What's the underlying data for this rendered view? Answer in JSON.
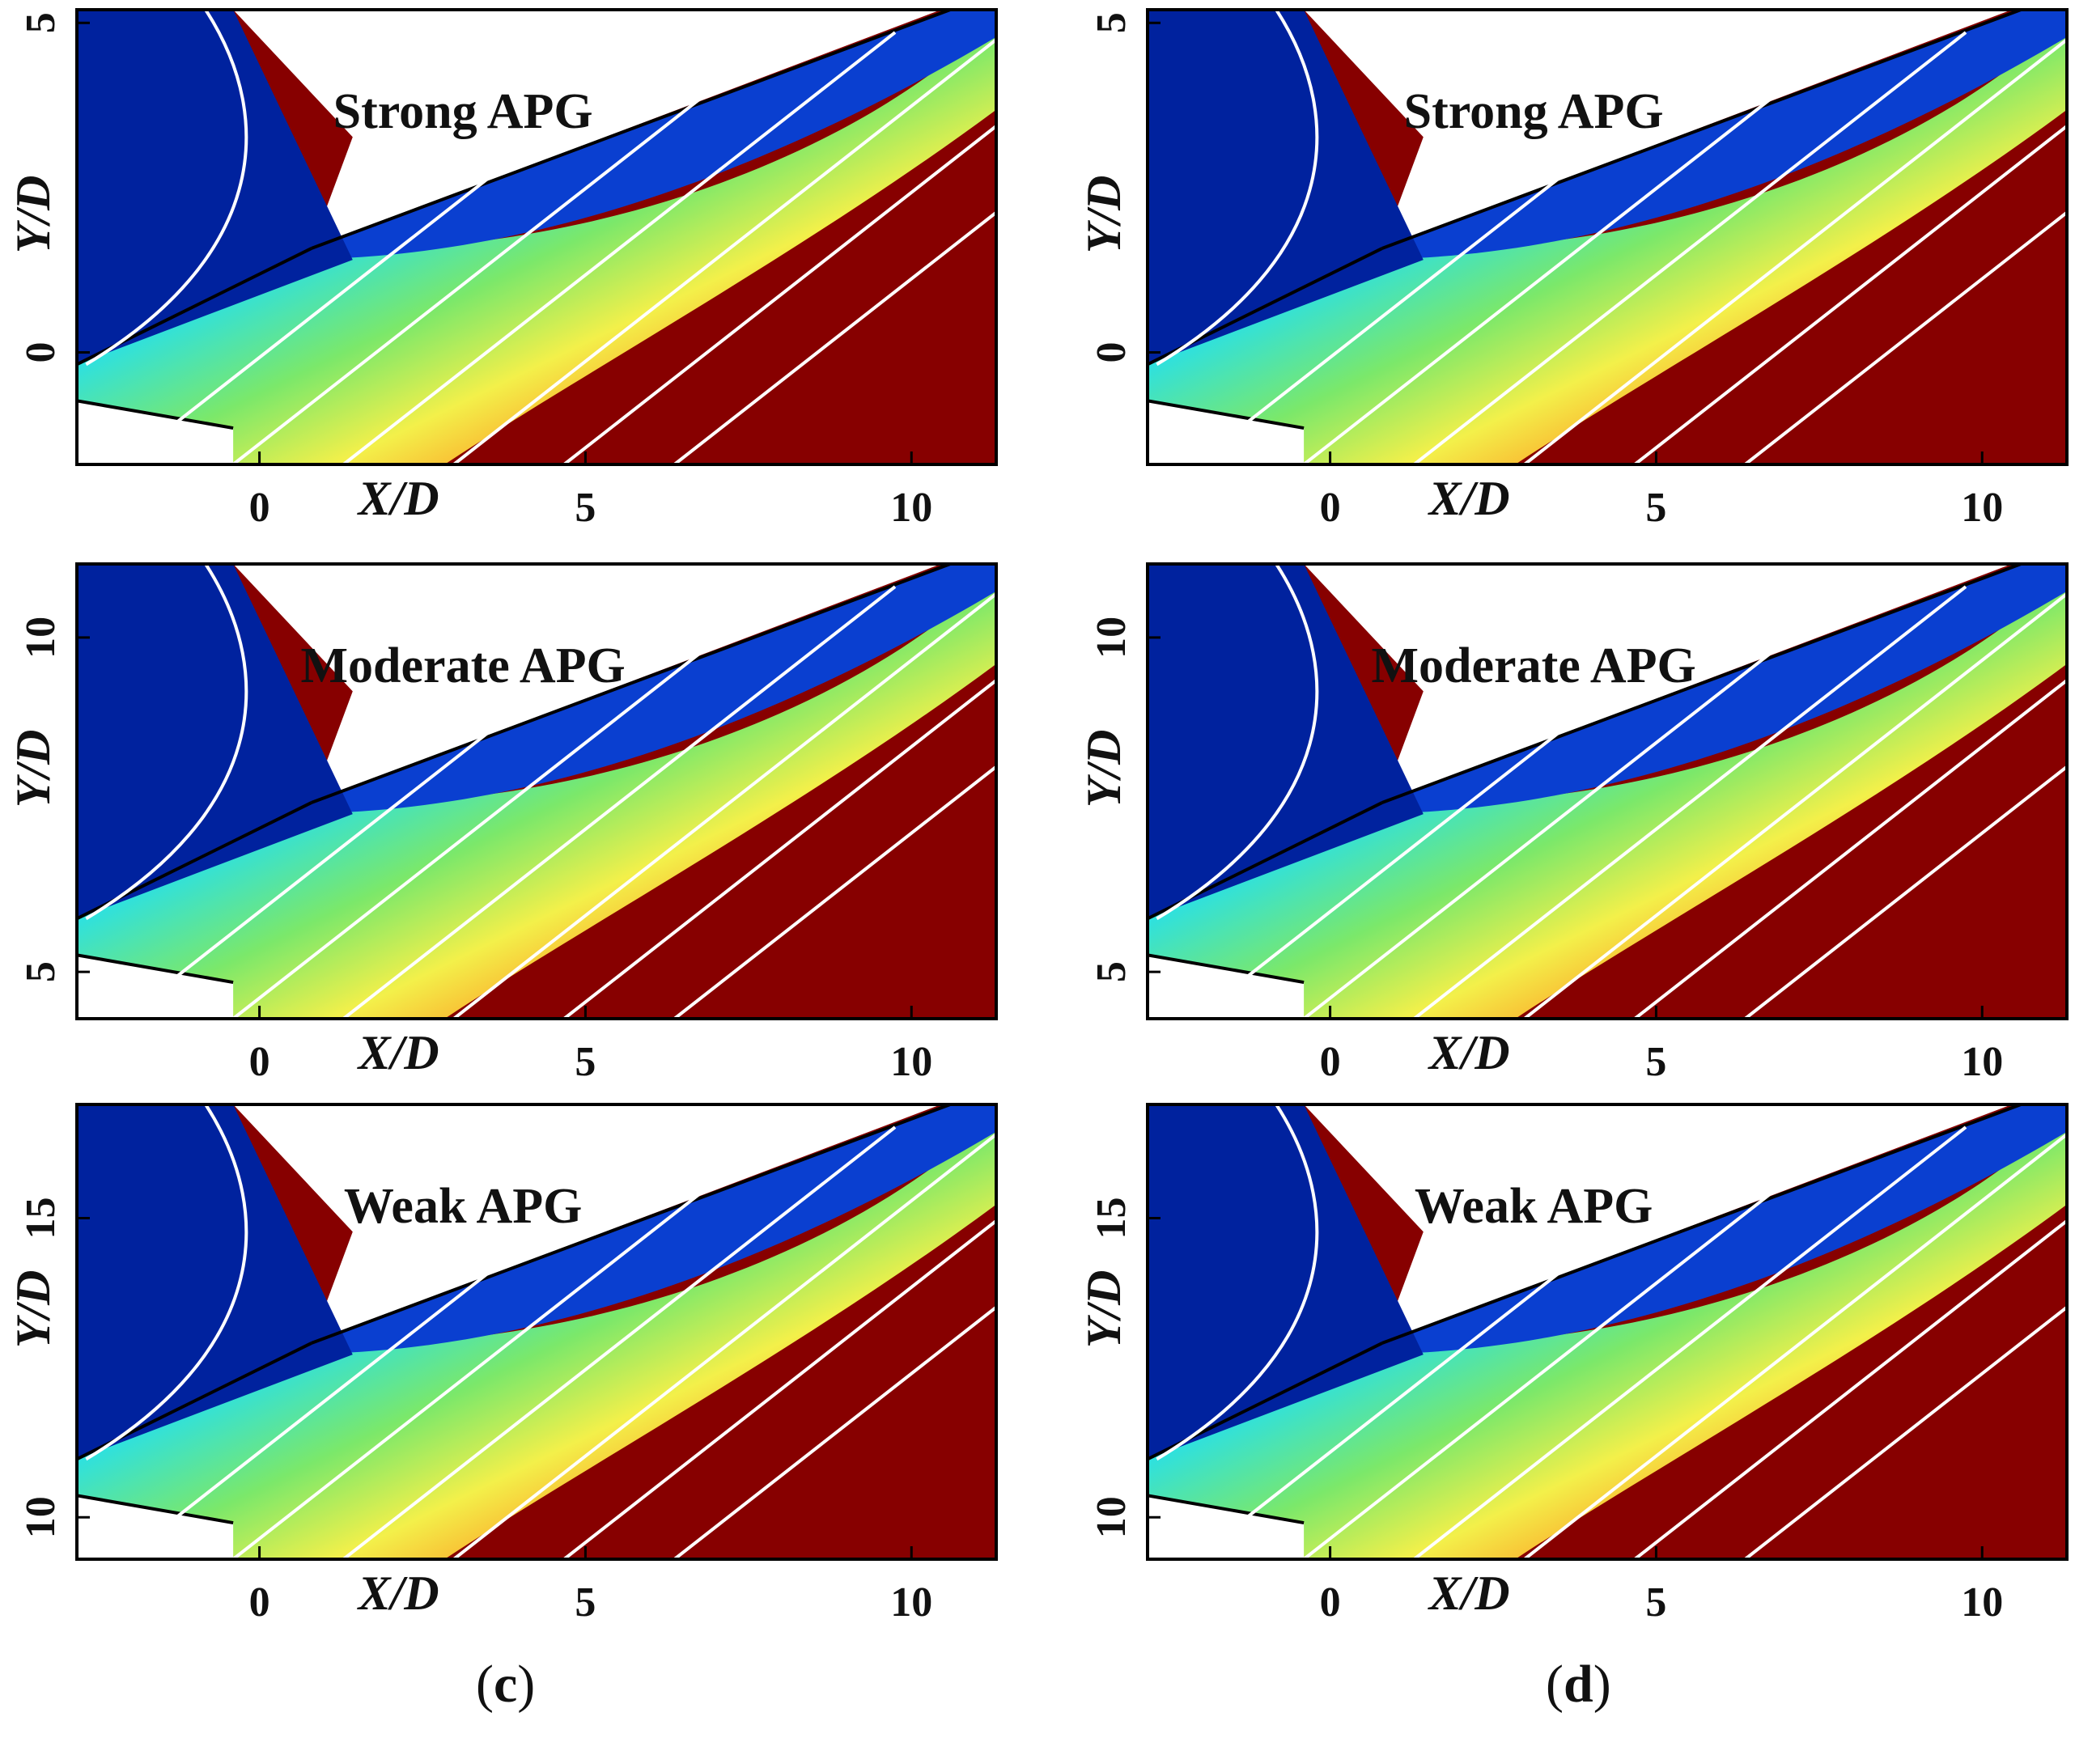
{
  "figure": {
    "colors": {
      "blue": "#00229e",
      "red": "#870000",
      "white": "#ffffff",
      "stream": "#ffffff"
    }
  },
  "captions": [
    {
      "open": "(",
      "letter": "c",
      "close": ")"
    },
    {
      "open": "(",
      "letter": "d",
      "close": ")"
    }
  ],
  "chart_data": [
    {
      "type": "contour",
      "column": "c",
      "title": "Strong APG",
      "xlabel": "X/D",
      "ylabel": "Y/D",
      "xticks": [
        0,
        5,
        10
      ],
      "yticks": [
        0,
        5
      ],
      "xlim": [
        -2.8,
        11.3
      ],
      "ylim": [
        -1.7,
        5.2
      ]
    },
    {
      "type": "contour",
      "column": "d",
      "title": "Strong APG",
      "xlabel": "X/D",
      "ylabel": "Y/D",
      "xticks": [
        0,
        5,
        10
      ],
      "yticks": [
        0,
        5
      ],
      "xlim": [
        -2.8,
        11.3
      ],
      "ylim": [
        -1.7,
        5.2
      ]
    },
    {
      "type": "contour",
      "column": "c",
      "title": "Moderate APG",
      "xlabel": "X/D",
      "ylabel": "Y/D",
      "xticks": [
        0,
        5,
        10
      ],
      "yticks": [
        5,
        10
      ],
      "xlim": [
        -2.8,
        11.3
      ],
      "ylim": [
        4.3,
        11.1
      ]
    },
    {
      "type": "contour",
      "column": "d",
      "title": "Moderate APG",
      "xlabel": "X/D",
      "ylabel": "Y/D",
      "xticks": [
        0,
        5,
        10
      ],
      "yticks": [
        5,
        10
      ],
      "xlim": [
        -2.8,
        11.3
      ],
      "ylim": [
        4.3,
        11.1
      ]
    },
    {
      "type": "contour",
      "column": "c",
      "title": "Weak APG",
      "xlabel": "X/D",
      "ylabel": "Y/D",
      "xticks": [
        0,
        5,
        10
      ],
      "yticks": [
        10,
        15
      ],
      "xlim": [
        -2.8,
        11.3
      ],
      "ylim": [
        9.3,
        16.9
      ]
    },
    {
      "type": "contour",
      "column": "d",
      "title": "Weak APG",
      "xlabel": "X/D",
      "ylabel": "Y/D",
      "xticks": [
        0,
        5,
        10
      ],
      "yticks": [
        10,
        15
      ],
      "xlim": [
        -2.8,
        11.3
      ],
      "ylim": [
        9.3,
        16.9
      ]
    }
  ]
}
